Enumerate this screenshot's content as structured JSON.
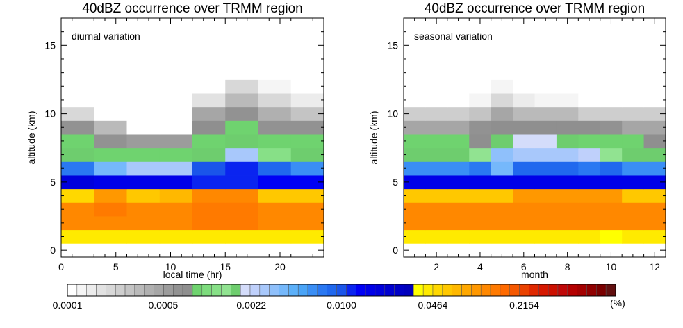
{
  "chart_data": [
    {
      "type": "heatmap",
      "title": "40dBZ occurrence over TRMM region",
      "annotation": "diurnal variation",
      "xlabel": "local time (hr)",
      "ylabel": "altitude (km)",
      "xlim": [
        0,
        24
      ],
      "ylim": [
        -0.5,
        17
      ],
      "xticks": [
        0,
        5,
        10,
        15,
        20
      ],
      "yticks": [
        0,
        5,
        10,
        15
      ],
      "x_bins": [
        [
          0,
          3
        ],
        [
          3,
          6
        ],
        [
          6,
          9
        ],
        [
          9,
          12
        ],
        [
          12,
          15
        ],
        [
          15,
          18
        ],
        [
          18,
          21
        ],
        [
          21,
          24
        ]
      ],
      "y_bins": [
        [
          0.5,
          1.5
        ],
        [
          1.5,
          2.5
        ],
        [
          2.5,
          3.5
        ],
        [
          3.5,
          4.5
        ],
        [
          4.5,
          5.5
        ],
        [
          5.5,
          6.5
        ],
        [
          6.5,
          7.5
        ],
        [
          7.5,
          8.5
        ],
        [
          8.5,
          9.5
        ],
        [
          9.5,
          10.5
        ],
        [
          10.5,
          11.5
        ],
        [
          11.5,
          12.5
        ],
        [
          12.5,
          17.0
        ]
      ],
      "values": [
        [
          0.04,
          0.045,
          0.04,
          0.04,
          0.045,
          0.045,
          0.04,
          0.04
        ],
        [
          0.12,
          0.12,
          0.12,
          0.12,
          0.13,
          0.13,
          0.12,
          0.12
        ],
        [
          0.12,
          0.13,
          0.12,
          0.12,
          0.13,
          0.13,
          0.12,
          0.12
        ],
        [
          0.05,
          0.1,
          0.06,
          0.07,
          0.11,
          0.11,
          0.06,
          0.06
        ],
        [
          0.018,
          0.017,
          0.017,
          0.015,
          0.012,
          0.012,
          0.014,
          0.014
        ],
        [
          0.0075,
          0.0035,
          0.0027,
          0.0027,
          0.0095,
          0.011,
          0.0085,
          0.0065
        ],
        [
          0.0018,
          0.00095,
          0.00085,
          0.00085,
          0.0017,
          0.0027,
          0.0013,
          0.0017
        ],
        [
          0.0009,
          0.00065,
          0.00055,
          0.00055,
          0.0009,
          0.0018,
          0.0009,
          0.0009
        ],
        [
          0.0006,
          0.00035,
          0.0001,
          0.0001,
          0.0007,
          0.00095,
          0.0006,
          0.0006
        ],
        [
          0.00022,
          0.0001,
          0.0001,
          0.0001,
          0.00045,
          0.0006,
          0.0004,
          0.0003
        ],
        [
          0.0001,
          0.0001,
          0.0001,
          0.0001,
          0.00018,
          0.00035,
          0.00022,
          0.00015
        ],
        [
          0.0001,
          0.0001,
          0.0001,
          0.0001,
          0.0001,
          0.00022,
          0.00013,
          0.0001
        ],
        [
          0.0001,
          0.0001,
          0.0001,
          0.0001,
          0.0001,
          0.0001,
          0.0001,
          0.0001
        ]
      ]
    },
    {
      "type": "heatmap",
      "title": "40dBZ occurrence over TRMM region",
      "annotation": "seasonal variation",
      "xlabel": "month",
      "ylabel": "altitude (km)",
      "xlim": [
        0.5,
        12.5
      ],
      "ylim": [
        -0.5,
        17
      ],
      "xticks": [
        2,
        4,
        6,
        8,
        10,
        12
      ],
      "yticks": [
        0,
        5,
        10,
        15
      ],
      "x_bins": [
        [
          0.5,
          1.5
        ],
        [
          1.5,
          2.5
        ],
        [
          2.5,
          3.5
        ],
        [
          3.5,
          4.5
        ],
        [
          4.5,
          5.5
        ],
        [
          5.5,
          6.5
        ],
        [
          6.5,
          7.5
        ],
        [
          7.5,
          8.5
        ],
        [
          8.5,
          9.5
        ],
        [
          9.5,
          10.5
        ],
        [
          10.5,
          11.5
        ],
        [
          11.5,
          12.5
        ]
      ],
      "y_bins": [
        [
          0.5,
          1.5
        ],
        [
          1.5,
          2.5
        ],
        [
          2.5,
          3.5
        ],
        [
          3.5,
          4.5
        ],
        [
          4.5,
          5.5
        ],
        [
          5.5,
          6.5
        ],
        [
          6.5,
          7.5
        ],
        [
          7.5,
          8.5
        ],
        [
          8.5,
          9.5
        ],
        [
          9.5,
          10.5
        ],
        [
          10.5,
          11.5
        ],
        [
          11.5,
          12.5
        ],
        [
          12.5,
          17.0
        ]
      ],
      "values": [
        [
          0.04,
          0.04,
          0.04,
          0.04,
          0.04,
          0.04,
          0.04,
          0.04,
          0.04,
          0.038,
          0.04,
          0.04
        ],
        [
          0.12,
          0.12,
          0.12,
          0.12,
          0.12,
          0.12,
          0.12,
          0.12,
          0.12,
          0.12,
          0.12,
          0.12
        ],
        [
          0.12,
          0.12,
          0.12,
          0.12,
          0.12,
          0.12,
          0.12,
          0.12,
          0.12,
          0.12,
          0.12,
          0.12
        ],
        [
          0.06,
          0.06,
          0.06,
          0.06,
          0.06,
          0.1,
          0.1,
          0.1,
          0.1,
          0.1,
          0.06,
          0.06
        ],
        [
          0.016,
          0.016,
          0.016,
          0.016,
          0.016,
          0.016,
          0.016,
          0.016,
          0.016,
          0.016,
          0.016,
          0.016
        ],
        [
          0.0065,
          0.0065,
          0.0065,
          0.0072,
          0.0035,
          0.008,
          0.0088,
          0.0088,
          0.0075,
          0.008,
          0.0065,
          0.0065
        ],
        [
          0.0017,
          0.0017,
          0.0016,
          0.0015,
          0.0032,
          0.0028,
          0.0028,
          0.0028,
          0.0024,
          0.0015,
          0.0016,
          0.0016
        ],
        [
          0.0009,
          0.0009,
          0.0009,
          0.0008,
          0.0018,
          0.0019,
          0.0019,
          0.0018,
          0.0009,
          0.0009,
          0.0009,
          0.0008
        ],
        [
          0.0005,
          0.0005,
          0.0005,
          0.0006,
          0.0008,
          0.0007,
          0.0007,
          0.0007,
          0.0007,
          0.0006,
          0.0005,
          0.0005
        ],
        [
          0.00025,
          0.00025,
          0.00025,
          0.0003,
          0.00045,
          0.00035,
          0.00035,
          0.00035,
          0.00025,
          0.00025,
          0.00025,
          0.00025
        ],
        [
          0.0001,
          0.0001,
          0.0001,
          0.00012,
          0.0002,
          0.00015,
          0.00012,
          0.00012,
          0.0001,
          0.0001,
          0.0001,
          0.0001
        ],
        [
          0.0001,
          0.0001,
          0.0001,
          0.0001,
          0.00013,
          0.0001,
          0.0001,
          0.0001,
          0.0001,
          0.0001,
          0.0001,
          0.0001
        ],
        [
          0.0001,
          0.0001,
          0.0001,
          0.0001,
          0.0001,
          0.0001,
          0.0001,
          0.0001,
          0.0001,
          0.0001,
          0.0001,
          0.0001
        ]
      ]
    }
  ],
  "colorbar": {
    "tick_labels": [
      "0.0001",
      "0.0005",
      "0.0022",
      "0.0100",
      "0.0464",
      "0.2154"
    ],
    "tick_values": [
      0.0001,
      0.0005,
      0.0022,
      0.01,
      0.0464,
      0.2154
    ],
    "unit": "(%)",
    "scale": "log",
    "range": [
      0.0001,
      1.0
    ],
    "colors": [
      "#ffffff",
      "#f5f5f5",
      "#ececec",
      "#e2e2e2",
      "#d8d8d8",
      "#cecece",
      "#c4c4c4",
      "#bababa",
      "#b0b0b0",
      "#a6a6a6",
      "#9c9c9c",
      "#929292",
      "#8f8f8f",
      "#6fd36f",
      "#7ddc7d",
      "#87e087",
      "#91e391",
      "#6ecd6e",
      "#d4dcfa",
      "#bfd0fb",
      "#a8c8fb",
      "#8fc0fb",
      "#75b8fb",
      "#5cb0f9",
      "#4aa4f7",
      "#3a8ef5",
      "#2a78f2",
      "#2068ee",
      "#1a55ea",
      "#0a24f0",
      "#0000f5",
      "#0000e8",
      "#0000dc",
      "#0000d0",
      "#0000c6",
      "#0000bc",
      "#ffff00",
      "#ffea00",
      "#ffd800",
      "#ffc800",
      "#ffb800",
      "#ffa800",
      "#ff9800",
      "#ff8800",
      "#ff7a00",
      "#ff6a00",
      "#f55800",
      "#ea4200",
      "#e02800",
      "#d61800",
      "#cc1000",
      "#c00808",
      "#b40000",
      "#a40000",
      "#900000",
      "#7a0000",
      "#621010"
    ]
  }
}
